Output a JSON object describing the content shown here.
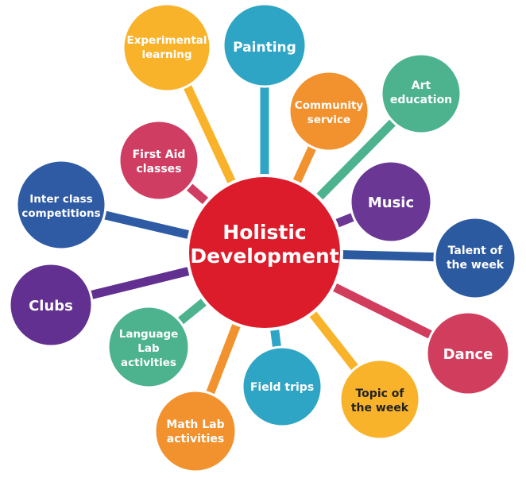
{
  "center": {
    "line1": "Holistic",
    "line2": "Development",
    "color": "#dc1c2b"
  },
  "nodes": [
    {
      "line1": "Experimental",
      "line2": "learning",
      "color": "#f8b32b"
    },
    {
      "line1": "Painting",
      "line2": "",
      "color": "#2fa5c5"
    },
    {
      "line1": "Community",
      "line2": "service",
      "color": "#f1922f"
    },
    {
      "line1": "Art",
      "line2": "education",
      "color": "#4db38f"
    },
    {
      "line1": "First Aid",
      "line2": "classes",
      "color": "#cf3d62"
    },
    {
      "line1": "Inter class",
      "line2": "competitions",
      "color": "#2f5ba5"
    },
    {
      "line1": "Music",
      "line2": "",
      "color": "#6a3795"
    },
    {
      "line1": "Talent of",
      "line2": "the week",
      "color": "#2c5aa0"
    },
    {
      "line1": "Clubs",
      "line2": "",
      "color": "#613090"
    },
    {
      "line1": "Language",
      "line2": "Lab",
      "line3": "activities",
      "color": "#4db38f"
    },
    {
      "line1": "Dance",
      "line2": "",
      "color": "#d13e5d"
    },
    {
      "line1": "Field trips",
      "line2": "",
      "color": "#2fa5c5"
    },
    {
      "line1": "Topic of",
      "line2": "the week",
      "color": "#f8b32b"
    },
    {
      "line1": "Math Lab",
      "line2": "activities",
      "color": "#f1922f"
    }
  ]
}
